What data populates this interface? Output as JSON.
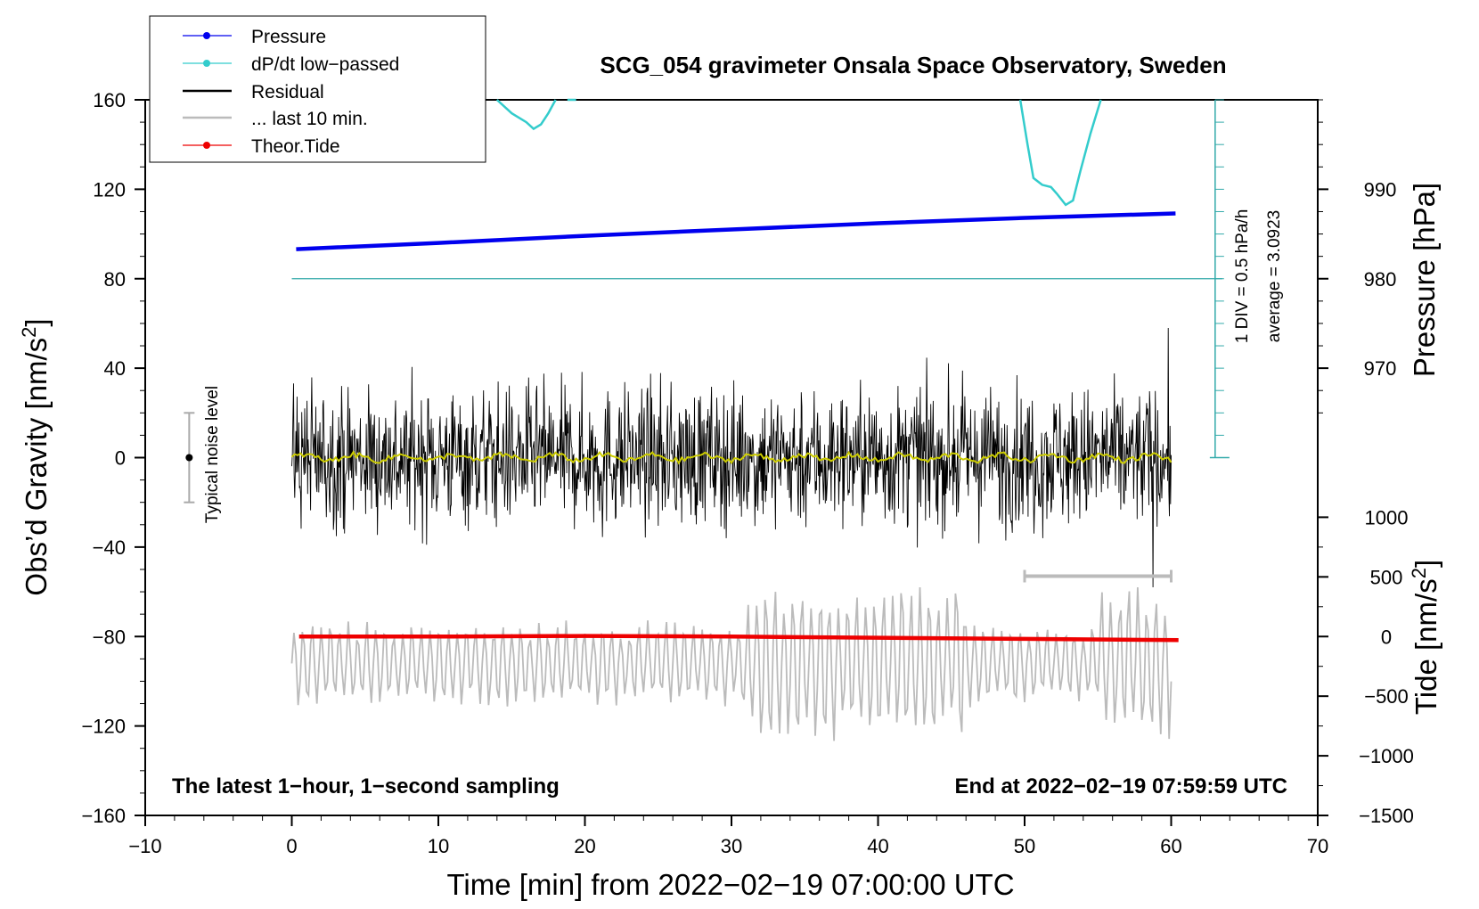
{
  "chart_data": {
    "type": "line",
    "title": "SCG_054 gravimeter Onsala Space Observatory, Sweden",
    "xlabel": "Time [min] from 2022−02−19 07:00:00 UTC",
    "ylabel_left": "Obs’d Gravity [nm/s",
    "ylabel_left_sup": "2",
    "ylabel_left_end": "]",
    "ylabel_right_pressure": "Pressure [hPa]",
    "ylabel_right_tide": "Tide [nm/s",
    "ylabel_right_tide_sup": "2",
    "ylabel_right_tide_end": "]",
    "xlim": [
      -10,
      70
    ],
    "ylim": [
      -160,
      160
    ],
    "x_ticks": [
      -10,
      0,
      10,
      20,
      30,
      40,
      50,
      60,
      70
    ],
    "x_tick_labels": [
      "−10",
      "0",
      "10",
      "20",
      "30",
      "40",
      "50",
      "60",
      "70"
    ],
    "y_ticks": [
      160,
      120,
      80,
      40,
      0,
      -40,
      -80,
      -120,
      -160
    ],
    "y_tick_labels": [
      "160",
      "120",
      "80",
      "40",
      "0",
      "−40",
      "−80",
      "−120",
      "−160"
    ],
    "pressure_axis": {
      "ticks": [
        990,
        980,
        970
      ],
      "tick_labels": [
        "990",
        "980",
        "970"
      ],
      "note": "pressure 980 hPa aligns with gravity 80; 10 hPa per 40 nm/s2"
    },
    "tide_axis": {
      "ticks": [
        1000,
        500,
        0,
        -500,
        -1000,
        -1500
      ],
      "tick_labels": [
        "1000",
        "500",
        "0",
        "−500",
        "−1000",
        "−1500"
      ],
      "note": "tide 0 aligns with gravity -80; 500 nm/s2 per ~26.7 nm/s2"
    },
    "legend": {
      "placement": "top-left",
      "entries": [
        {
          "label": "Pressure",
          "color": "#0000ee",
          "style": "line-dot"
        },
        {
          "label": "dP/dt low−passed",
          "color": "#33cccc",
          "style": "line-dot"
        },
        {
          "label": "Residual",
          "color": "#000000",
          "style": "line"
        },
        {
          "label": "... last 10 min.",
          "color": "#bbbbbb",
          "style": "line"
        },
        {
          "label": "Theor.Tide",
          "color": "#ee0000",
          "style": "line-dot"
        }
      ]
    },
    "series": [
      {
        "name": "Pressure",
        "axis": "pressure",
        "color": "#0000ee",
        "x": [
          0.3,
          10,
          20,
          30,
          40,
          50,
          60.3
        ],
        "values": [
          983.3,
          984.0,
          984.8,
          985.5,
          986.2,
          986.8,
          987.3
        ]
      },
      {
        "name": "dP/dt low−passed",
        "axis": "gravity",
        "color": "#33cccc",
        "segments": [
          {
            "x": [
              14.0,
              15.0,
              16.0,
              16.5,
              17.0,
              17.5,
              18.0
            ],
            "values": [
              160,
              154,
              150,
              147,
              149,
              154,
              160
            ]
          },
          {
            "x": [
              18.8,
              19.4
            ],
            "values": [
              160,
              160
            ]
          },
          {
            "x": [
              49.7,
              50.2,
              50.6,
              51.2,
              51.8,
              52.2,
              52.8,
              53.3,
              53.8,
              54.5,
              55.2
            ],
            "values": [
              160,
              140,
              125,
              122,
              121,
              118,
              113,
              115,
              128,
              145,
              160
            ]
          }
        ]
      },
      {
        "name": "Residual",
        "axis": "gravity",
        "color": "#000000",
        "x_range": [
          0,
          60
        ],
        "amplitude_typical": 25,
        "amplitude_max": 58
      },
      {
        "name": "Residual smoothed",
        "axis": "gravity",
        "color": "#cccc00",
        "x_range": [
          0,
          60
        ],
        "values_near": 0
      },
      {
        "name": "... last 10 min.",
        "axis": "gravity",
        "color": "#bbbbbb",
        "x_range": [
          0,
          60
        ],
        "center": -92,
        "amplitude_typical": 20,
        "amplitude_max": 48
      },
      {
        "name": "Theor.Tide",
        "axis": "tide",
        "color": "#ee0000",
        "x": [
          0.5,
          10,
          20,
          30,
          40,
          50,
          60.5
        ],
        "values": [
          0,
          0,
          5,
          0,
          -10,
          -20,
          -30
        ]
      }
    ],
    "pressure_scale_bar": {
      "label_div": "1 DIV = 0.5 hPa/h",
      "label_avg": "average = 3.0923",
      "x": 63,
      "y_from": 0,
      "y_to": 160,
      "zero_line_y": 80
    },
    "noise_bar": {
      "label": "Typical noise level",
      "x": -7,
      "center": 0,
      "half_range": 20
    },
    "ten_min_bar": {
      "x_from": 50,
      "x_to": 60,
      "y": -53
    },
    "annotation_left": "The latest 1−hour, 1−second sampling",
    "annotation_right": "End at 2022−02−19 07:59:59 UTC",
    "grid": false
  }
}
